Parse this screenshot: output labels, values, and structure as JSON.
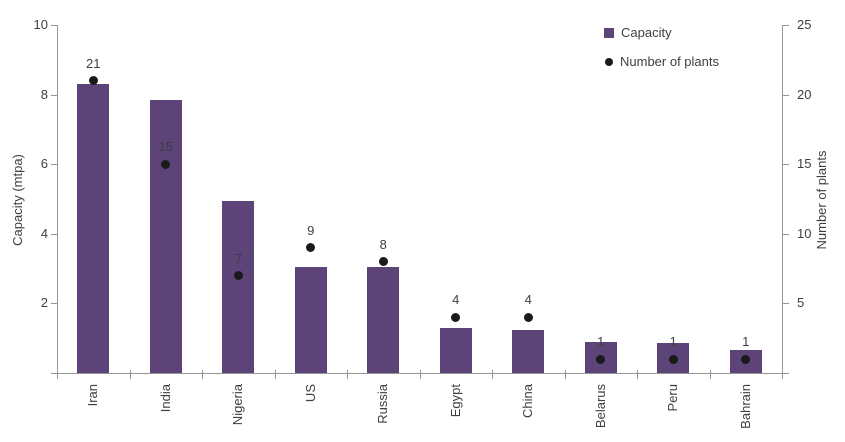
{
  "chart_data": {
    "type": "bar",
    "subtype": "combo-bar-with-points",
    "title": "",
    "categories": [
      "Iran",
      "India",
      "Nigeria",
      "US",
      "Russia",
      "Egypt",
      "China",
      "Belarus",
      "Peru",
      "Bahrain"
    ],
    "series": [
      {
        "name": "Capacity",
        "render_as": "bar",
        "axis": "left",
        "color": "#5c4378",
        "values": [
          8.3,
          7.85,
          4.95,
          3.05,
          3.05,
          1.3,
          1.25,
          0.9,
          0.85,
          0.65
        ]
      },
      {
        "name": "Number of plants",
        "render_as": "point",
        "axis": "right",
        "color": "#1a1a1a",
        "values": [
          21,
          15,
          7,
          9,
          8,
          4,
          4,
          1,
          1,
          1
        ],
        "data_labels": [
          21,
          15,
          7,
          9,
          8,
          4,
          4,
          1,
          1,
          1
        ]
      }
    ],
    "left_axis": {
      "label": "Capacity (mtpa)",
      "min": 0,
      "max": 10,
      "ticks": [
        2,
        4,
        6,
        8,
        10
      ]
    },
    "right_axis": {
      "label": "Number of plants",
      "min": 0,
      "max": 25,
      "ticks": [
        5,
        10,
        15,
        20,
        25
      ]
    },
    "legend": {
      "position": "top-right",
      "entries": [
        {
          "label": "Capacity",
          "marker": "square",
          "color": "#5c4378"
        },
        {
          "label": "Number of plants",
          "marker": "circle",
          "color": "#1a1a1a"
        }
      ]
    },
    "grid": "off",
    "background": "#ffffff"
  }
}
